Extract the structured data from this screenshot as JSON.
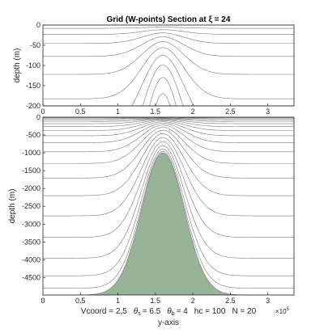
{
  "title": "Grid (W-points) Section at ξ = 24",
  "caption": {
    "vcoord": "Vcoord = 2,5",
    "theta_s_sym": "θ",
    "theta_s_sub": "s",
    "theta_s_val": "= 6.5",
    "theta_b_sym": "θ",
    "theta_b_sub": "b",
    "theta_b_val": "= 4",
    "hc": "hc  = 100",
    "n": "N = 20"
  },
  "chart_data": [
    {
      "type": "line",
      "name": "top",
      "ylabel": "depth  (m)",
      "xlim": [
        0,
        335000
      ],
      "ylim": [
        -200,
        0
      ],
      "xticks": [
        0,
        50000,
        100000,
        150000,
        200000,
        250000,
        300000
      ],
      "xtick_labels": [
        "0",
        "0.5",
        "1",
        "1.5",
        "2",
        "2.5",
        "3"
      ],
      "yticks": [
        0,
        -50,
        -100,
        -150,
        -200
      ],
      "ytick_labels": [
        "0",
        "-50",
        "-100",
        "-150",
        "-200"
      ]
    },
    {
      "type": "area",
      "name": "bottom",
      "xlabel": "y-axis",
      "ylabel": "depth  (m)",
      "xlim": [
        0,
        335000
      ],
      "ylim": [
        -4990,
        0
      ],
      "xticks": [
        0,
        50000,
        100000,
        150000,
        200000,
        250000,
        300000
      ],
      "xtick_labels": [
        "0",
        "0.5",
        "1",
        "1.5",
        "2",
        "2.5",
        "3"
      ],
      "yticks": [
        0,
        -500,
        -1000,
        -1500,
        -2000,
        -2500,
        -3000,
        -3500,
        -4000,
        -4500
      ],
      "ytick_labels": [
        "0",
        "-500",
        "-1000",
        "-1500",
        "-2000",
        "-2500",
        "-3000",
        "-3500",
        "-4000",
        "-4500"
      ],
      "xexponent": "×10",
      "xexponent_power": "5",
      "fill_color": "#98b398"
    }
  ],
  "grid_params": {
    "theta_s": 6.5,
    "theta_b": 4,
    "hc": 100,
    "N": 20,
    "vtransform": 2,
    "vstretching": 5,
    "bathymetry": {
      "deep_depth": 4990,
      "seamount_top_depth": 1000,
      "seamount_center_y": 160000,
      "seamount_width": 40000
    }
  },
  "colors": {
    "grid_line": "#7a7a7a",
    "axis": "#262626",
    "seamount": "#98b398"
  }
}
